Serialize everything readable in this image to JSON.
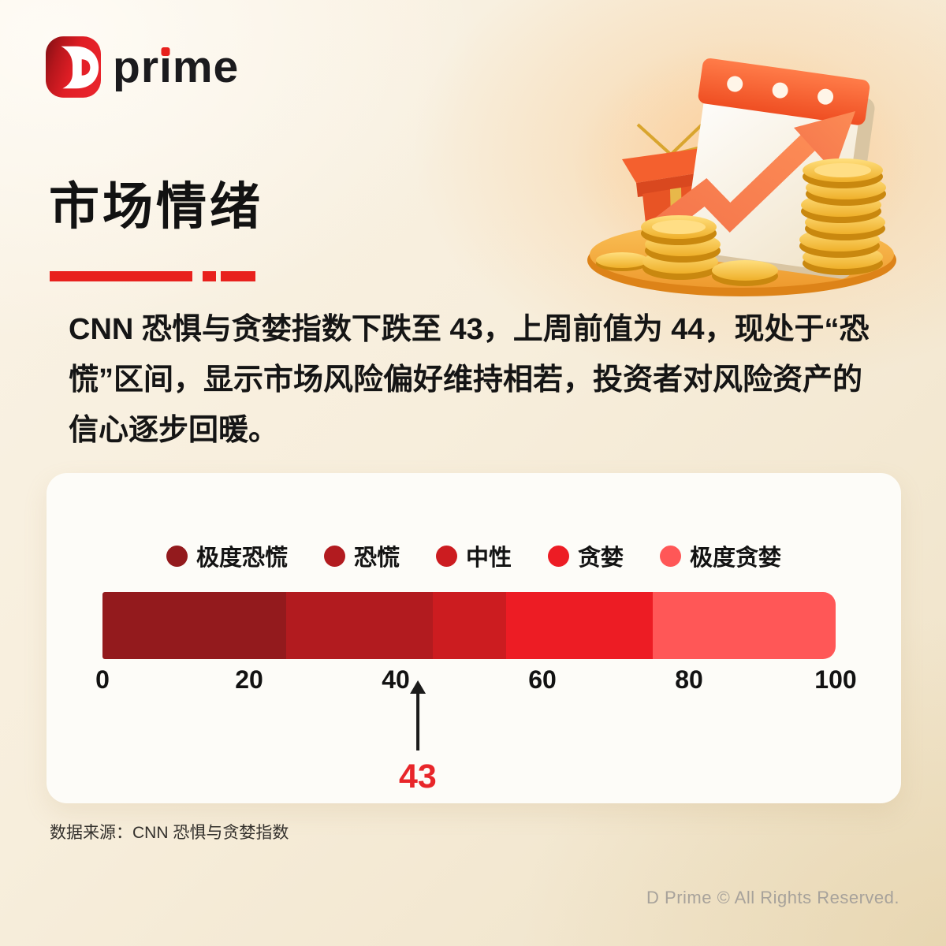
{
  "logo": {
    "d_letter": "D",
    "word_pre": "pr",
    "word_i_stem": "ı",
    "word_post": "me"
  },
  "header": {
    "title": "市场情绪"
  },
  "summary": {
    "text": "CNN 恐惧与贪婪指数下跌至 43，上周前值为 44，现处于“恐慌”区间，显示市场风险偏好维持相若，投资者对风险资产的信心逐步回暖。"
  },
  "chart_data": {
    "type": "bar",
    "variant": "segmented-horizontal-gauge",
    "title": "",
    "xlabel": "",
    "ylabel": "",
    "xlim": [
      0,
      100
    ],
    "axis_ticks": [
      0,
      20,
      40,
      60,
      80,
      100
    ],
    "grid": false,
    "legend_position": "top",
    "segments": [
      {
        "label": "极度恐慌",
        "range": [
          0,
          25
        ],
        "color": "#931A1D"
      },
      {
        "label": "恐慌",
        "range": [
          25,
          45
        ],
        "color": "#B21B1F"
      },
      {
        "label": "中性",
        "range": [
          45,
          55
        ],
        "color": "#CC1C20"
      },
      {
        "label": "贪婪",
        "range": [
          55,
          75
        ],
        "color": "#ED1C24"
      },
      {
        "label": "极度贪婪",
        "range": [
          75,
          100
        ],
        "color": "#FF5757"
      }
    ],
    "marker": {
      "value": 43,
      "label": "43",
      "color": "#E8262A"
    }
  },
  "source": {
    "text": "数据来源：CNN 恐惧与贪婪指数"
  },
  "footer": {
    "text": "D Prime © All Rights Reserved."
  },
  "colors": {
    "accent_red": "#E8211D",
    "card_bg": "#FDFCF8"
  }
}
